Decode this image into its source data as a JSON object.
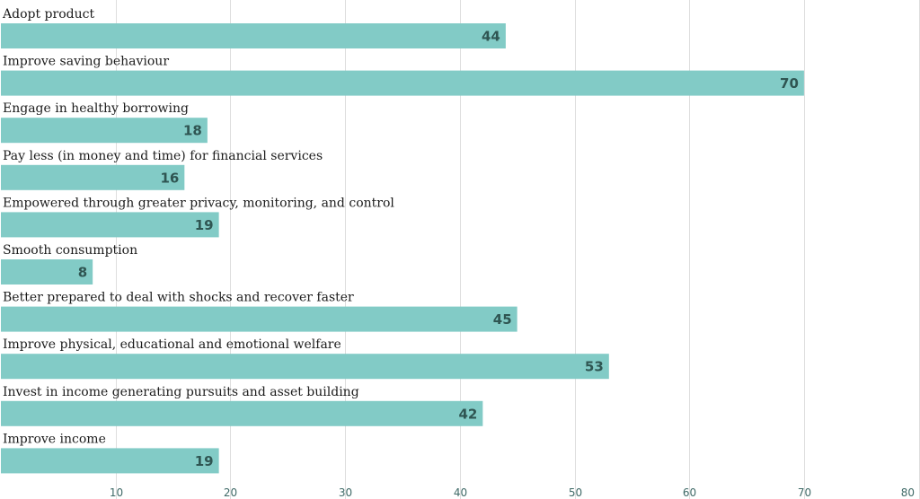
{
  "chart_data": {
    "type": "bar",
    "orientation": "horizontal",
    "title": "",
    "xlabel": "",
    "ylabel": "",
    "xlim": [
      0,
      80
    ],
    "x_ticks": [
      10,
      20,
      30,
      40,
      50,
      60,
      70,
      80
    ],
    "grid": true,
    "legend": "none",
    "bar_color": "#82cbc6",
    "value_label_color": "#2f5552",
    "categories": [
      "Adopt product",
      "Improve saving behaviour",
      "Engage in healthy borrowing",
      "Pay less (in money and time) for financial services",
      "Empowered through greater privacy, monitoring, and control",
      "Smooth consumption",
      "Better prepared to deal with shocks and recover faster",
      "Improve physical, educational and emotional welfare",
      "Invest in income generating pursuits and asset building",
      "Improve income"
    ],
    "values": [
      44,
      70,
      18,
      16,
      19,
      8,
      45,
      53,
      42,
      19
    ]
  }
}
